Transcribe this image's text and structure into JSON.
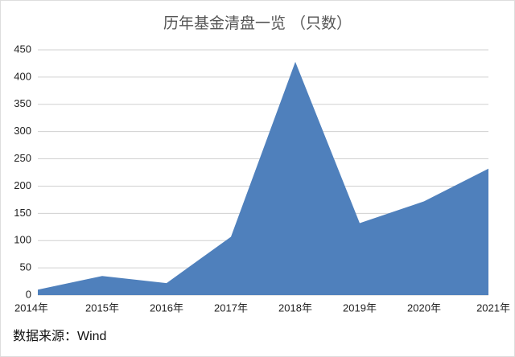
{
  "chart_data": {
    "type": "area",
    "title": "历年基金清盘一览 （只数）",
    "categories": [
      "2014年",
      "2015年",
      "2016年",
      "2017年",
      "2018年",
      "2019年",
      "2020年",
      "2021年"
    ],
    "values": [
      10,
      35,
      22,
      107,
      428,
      132,
      172,
      232
    ],
    "color": "#4f80bc",
    "ylim": [
      0,
      450
    ],
    "yticks": [
      0,
      50,
      100,
      150,
      200,
      250,
      300,
      350,
      400,
      450
    ],
    "grid": true,
    "source": "数据来源：Wind"
  }
}
